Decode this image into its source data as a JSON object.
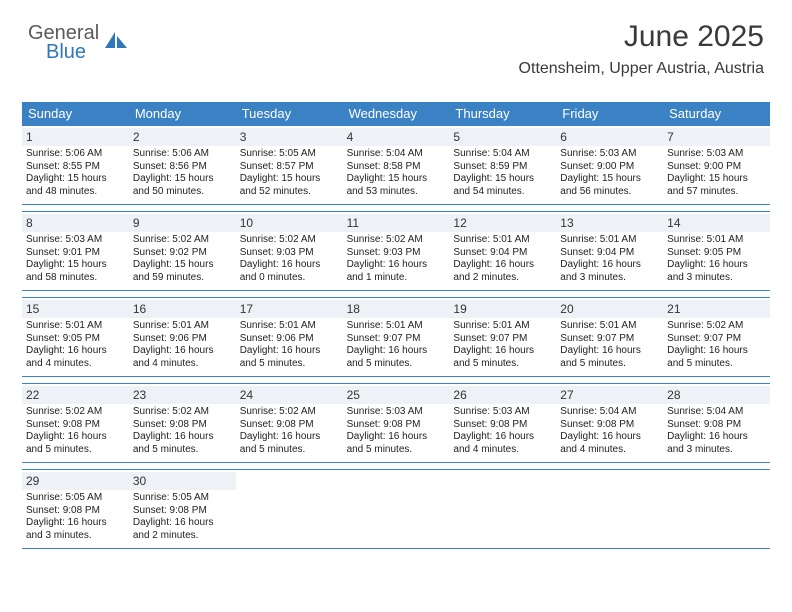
{
  "logo": {
    "word1": "General",
    "word2": "Blue"
  },
  "header": {
    "title": "June 2025",
    "subtitle": "Ottensheim, Upper Austria, Austria"
  },
  "colors": {
    "header_bg": "#3b82c4",
    "header_text": "#ffffff",
    "daynum_bg": "#eef2f6",
    "rule": "#3b82c4",
    "logo_gray": "#5a5a5a",
    "logo_blue": "#2f77bb"
  },
  "daynames": [
    "Sunday",
    "Monday",
    "Tuesday",
    "Wednesday",
    "Thursday",
    "Friday",
    "Saturday"
  ],
  "weeks": [
    [
      {
        "n": "1",
        "sr": "Sunrise: 5:06 AM",
        "ss": "Sunset: 8:55 PM",
        "dl": "Daylight: 15 hours and 48 minutes."
      },
      {
        "n": "2",
        "sr": "Sunrise: 5:06 AM",
        "ss": "Sunset: 8:56 PM",
        "dl": "Daylight: 15 hours and 50 minutes."
      },
      {
        "n": "3",
        "sr": "Sunrise: 5:05 AM",
        "ss": "Sunset: 8:57 PM",
        "dl": "Daylight: 15 hours and 52 minutes."
      },
      {
        "n": "4",
        "sr": "Sunrise: 5:04 AM",
        "ss": "Sunset: 8:58 PM",
        "dl": "Daylight: 15 hours and 53 minutes."
      },
      {
        "n": "5",
        "sr": "Sunrise: 5:04 AM",
        "ss": "Sunset: 8:59 PM",
        "dl": "Daylight: 15 hours and 54 minutes."
      },
      {
        "n": "6",
        "sr": "Sunrise: 5:03 AM",
        "ss": "Sunset: 9:00 PM",
        "dl": "Daylight: 15 hours and 56 minutes."
      },
      {
        "n": "7",
        "sr": "Sunrise: 5:03 AM",
        "ss": "Sunset: 9:00 PM",
        "dl": "Daylight: 15 hours and 57 minutes."
      }
    ],
    [
      {
        "n": "8",
        "sr": "Sunrise: 5:03 AM",
        "ss": "Sunset: 9:01 PM",
        "dl": "Daylight: 15 hours and 58 minutes."
      },
      {
        "n": "9",
        "sr": "Sunrise: 5:02 AM",
        "ss": "Sunset: 9:02 PM",
        "dl": "Daylight: 15 hours and 59 minutes."
      },
      {
        "n": "10",
        "sr": "Sunrise: 5:02 AM",
        "ss": "Sunset: 9:03 PM",
        "dl": "Daylight: 16 hours and 0 minutes."
      },
      {
        "n": "11",
        "sr": "Sunrise: 5:02 AM",
        "ss": "Sunset: 9:03 PM",
        "dl": "Daylight: 16 hours and 1 minute."
      },
      {
        "n": "12",
        "sr": "Sunrise: 5:01 AM",
        "ss": "Sunset: 9:04 PM",
        "dl": "Daylight: 16 hours and 2 minutes."
      },
      {
        "n": "13",
        "sr": "Sunrise: 5:01 AM",
        "ss": "Sunset: 9:04 PM",
        "dl": "Daylight: 16 hours and 3 minutes."
      },
      {
        "n": "14",
        "sr": "Sunrise: 5:01 AM",
        "ss": "Sunset: 9:05 PM",
        "dl": "Daylight: 16 hours and 3 minutes."
      }
    ],
    [
      {
        "n": "15",
        "sr": "Sunrise: 5:01 AM",
        "ss": "Sunset: 9:05 PM",
        "dl": "Daylight: 16 hours and 4 minutes."
      },
      {
        "n": "16",
        "sr": "Sunrise: 5:01 AM",
        "ss": "Sunset: 9:06 PM",
        "dl": "Daylight: 16 hours and 4 minutes."
      },
      {
        "n": "17",
        "sr": "Sunrise: 5:01 AM",
        "ss": "Sunset: 9:06 PM",
        "dl": "Daylight: 16 hours and 5 minutes."
      },
      {
        "n": "18",
        "sr": "Sunrise: 5:01 AM",
        "ss": "Sunset: 9:07 PM",
        "dl": "Daylight: 16 hours and 5 minutes."
      },
      {
        "n": "19",
        "sr": "Sunrise: 5:01 AM",
        "ss": "Sunset: 9:07 PM",
        "dl": "Daylight: 16 hours and 5 minutes."
      },
      {
        "n": "20",
        "sr": "Sunrise: 5:01 AM",
        "ss": "Sunset: 9:07 PM",
        "dl": "Daylight: 16 hours and 5 minutes."
      },
      {
        "n": "21",
        "sr": "Sunrise: 5:02 AM",
        "ss": "Sunset: 9:07 PM",
        "dl": "Daylight: 16 hours and 5 minutes."
      }
    ],
    [
      {
        "n": "22",
        "sr": "Sunrise: 5:02 AM",
        "ss": "Sunset: 9:08 PM",
        "dl": "Daylight: 16 hours and 5 minutes."
      },
      {
        "n": "23",
        "sr": "Sunrise: 5:02 AM",
        "ss": "Sunset: 9:08 PM",
        "dl": "Daylight: 16 hours and 5 minutes."
      },
      {
        "n": "24",
        "sr": "Sunrise: 5:02 AM",
        "ss": "Sunset: 9:08 PM",
        "dl": "Daylight: 16 hours and 5 minutes."
      },
      {
        "n": "25",
        "sr": "Sunrise: 5:03 AM",
        "ss": "Sunset: 9:08 PM",
        "dl": "Daylight: 16 hours and 5 minutes."
      },
      {
        "n": "26",
        "sr": "Sunrise: 5:03 AM",
        "ss": "Sunset: 9:08 PM",
        "dl": "Daylight: 16 hours and 4 minutes."
      },
      {
        "n": "27",
        "sr": "Sunrise: 5:04 AM",
        "ss": "Sunset: 9:08 PM",
        "dl": "Daylight: 16 hours and 4 minutes."
      },
      {
        "n": "28",
        "sr": "Sunrise: 5:04 AM",
        "ss": "Sunset: 9:08 PM",
        "dl": "Daylight: 16 hours and 3 minutes."
      }
    ],
    [
      {
        "n": "29",
        "sr": "Sunrise: 5:05 AM",
        "ss": "Sunset: 9:08 PM",
        "dl": "Daylight: 16 hours and 3 minutes."
      },
      {
        "n": "30",
        "sr": "Sunrise: 5:05 AM",
        "ss": "Sunset: 9:08 PM",
        "dl": "Daylight: 16 hours and 2 minutes."
      },
      null,
      null,
      null,
      null,
      null
    ]
  ]
}
